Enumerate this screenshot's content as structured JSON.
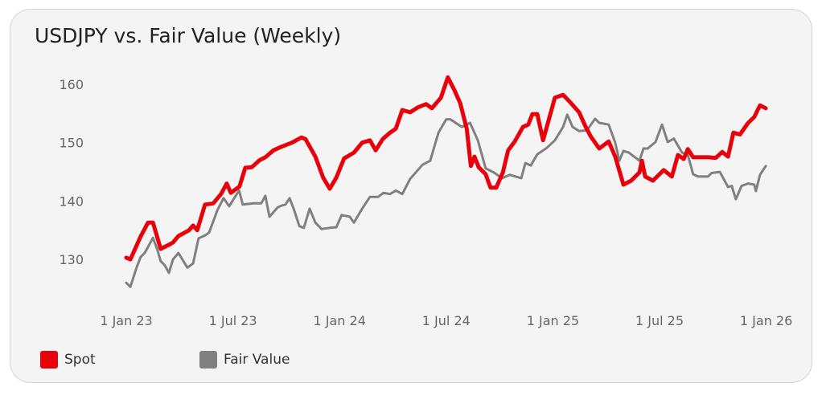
{
  "chart_data": {
    "type": "line",
    "title": "USDJPY vs. Fair Value (Weekly)",
    "xlabel": "",
    "ylabel": "",
    "x_unit": "weeks since 1 Jan 23",
    "x_ticks": [
      {
        "week": 0,
        "label": "1 Jan 23"
      },
      {
        "week": 26,
        "label": "1 Jul 23"
      },
      {
        "week": 52,
        "label": "1 Jan 24"
      },
      {
        "week": 78,
        "label": "1 Jul 24"
      },
      {
        "week": 104,
        "label": "1 Jan 25"
      },
      {
        "week": 130,
        "label": "1 Jul 25"
      },
      {
        "week": 156,
        "label": "1 Jan 26"
      }
    ],
    "y_ticks": [
      130,
      140,
      150,
      160
    ],
    "ylim": [
      120,
      162
    ],
    "grid": false,
    "legend_position": "bottom-left",
    "series": [
      {
        "name": "Spot",
        "color": "#e8000b",
        "points": [
          [
            0,
            130.3
          ],
          [
            1,
            130
          ],
          [
            3.5,
            133.9
          ],
          [
            5.3,
            136.3
          ],
          [
            6.5,
            136.3
          ],
          [
            8.4,
            131.8
          ],
          [
            10.4,
            132.5
          ],
          [
            11.4,
            132.9
          ],
          [
            12.7,
            134
          ],
          [
            15.3,
            135
          ],
          [
            16.3,
            135.8
          ],
          [
            17.3,
            135
          ],
          [
            19.2,
            139.4
          ],
          [
            21.2,
            139.6
          ],
          [
            23.1,
            141.2
          ],
          [
            24.5,
            143
          ],
          [
            25.5,
            141.4
          ],
          [
            27.6,
            142.5
          ],
          [
            29,
            145.7
          ],
          [
            30.6,
            145.8
          ],
          [
            32.5,
            147
          ],
          [
            33.9,
            147.5
          ],
          [
            35.9,
            148.7
          ],
          [
            37.8,
            149.3
          ],
          [
            40.4,
            150
          ],
          [
            42.7,
            150.9
          ],
          [
            43.7,
            150.6
          ],
          [
            46.1,
            147.6
          ],
          [
            48,
            144
          ],
          [
            49.6,
            142.1
          ],
          [
            51.2,
            144
          ],
          [
            53.1,
            147.3
          ],
          [
            55.5,
            148.3
          ],
          [
            57.5,
            150
          ],
          [
            59.4,
            150.4
          ],
          [
            60.8,
            148.7
          ],
          [
            62.5,
            150.6
          ],
          [
            64.3,
            151.7
          ],
          [
            65.7,
            152.4
          ],
          [
            67.3,
            155.6
          ],
          [
            69.2,
            155.2
          ],
          [
            71.2,
            156.1
          ],
          [
            73.1,
            156.6
          ],
          [
            74.5,
            155.9
          ],
          [
            76.7,
            157.7
          ],
          [
            78.4,
            161.2
          ],
          [
            80,
            159
          ],
          [
            81.4,
            156.8
          ],
          [
            83,
            152.4
          ],
          [
            84,
            146
          ],
          [
            84.9,
            147.6
          ],
          [
            85.9,
            145.8
          ],
          [
            87.6,
            144.6
          ],
          [
            88.8,
            142.3
          ],
          [
            90.2,
            142.3
          ],
          [
            91.8,
            144.9
          ],
          [
            93.1,
            148.7
          ],
          [
            94.7,
            150.2
          ],
          [
            96.7,
            152.7
          ],
          [
            98,
            153.1
          ],
          [
            99,
            154.9
          ],
          [
            100.2,
            154.9
          ],
          [
            101.6,
            150.4
          ],
          [
            104.5,
            157.7
          ],
          [
            106.5,
            158.2
          ],
          [
            108.4,
            156.8
          ],
          [
            110.4,
            155.2
          ],
          [
            112,
            152.7
          ],
          [
            113.3,
            151
          ],
          [
            115.3,
            149
          ],
          [
            117.6,
            150.2
          ],
          [
            119.2,
            147.6
          ],
          [
            121.2,
            142.8
          ],
          [
            123.1,
            143.5
          ],
          [
            125.1,
            144.9
          ],
          [
            125.7,
            146.9
          ],
          [
            126.5,
            144.2
          ],
          [
            128.4,
            143.5
          ],
          [
            131,
            145.3
          ],
          [
            133,
            144.2
          ],
          [
            134.5,
            147.9
          ],
          [
            135.9,
            147.2
          ],
          [
            136.9,
            148.9
          ],
          [
            138.2,
            147.5
          ],
          [
            141.8,
            147.5
          ],
          [
            143.7,
            147.4
          ],
          [
            145.3,
            148.4
          ],
          [
            146.7,
            147.6
          ],
          [
            148,
            151.7
          ],
          [
            149.6,
            151.4
          ],
          [
            151.6,
            153.4
          ],
          [
            153.1,
            154.4
          ],
          [
            154.5,
            156.4
          ],
          [
            155.9,
            155.9
          ]
        ]
      },
      {
        "name": "Fair Value",
        "color": "#808080",
        "points": [
          [
            0,
            126
          ],
          [
            1,
            125.3
          ],
          [
            2.5,
            128.6
          ],
          [
            3.5,
            130.4
          ],
          [
            4.5,
            131.1
          ],
          [
            6.5,
            133.7
          ],
          [
            7.5,
            131.8
          ],
          [
            8.4,
            129.7
          ],
          [
            9.4,
            129
          ],
          [
            10.4,
            127.7
          ],
          [
            11.4,
            130
          ],
          [
            12.7,
            131.1
          ],
          [
            14.9,
            128.6
          ],
          [
            16.3,
            129.3
          ],
          [
            17.6,
            133.6
          ],
          [
            19.2,
            134.1
          ],
          [
            20.2,
            134.6
          ],
          [
            22.2,
            138.4
          ],
          [
            23.7,
            140.5
          ],
          [
            25.1,
            139.1
          ],
          [
            26.5,
            140.7
          ],
          [
            27.5,
            141.8
          ],
          [
            28.4,
            139.4
          ],
          [
            31,
            139.6
          ],
          [
            32.9,
            139.6
          ],
          [
            33.9,
            140.9
          ],
          [
            34.9,
            137.3
          ],
          [
            36.9,
            138.9
          ],
          [
            37.8,
            139.2
          ],
          [
            38.8,
            139.4
          ],
          [
            39.8,
            140.5
          ],
          [
            40.8,
            138.7
          ],
          [
            42.2,
            135.7
          ],
          [
            43.3,
            135.4
          ],
          [
            44.7,
            138.7
          ],
          [
            46.1,
            136.3
          ],
          [
            47.6,
            135.2
          ],
          [
            49.6,
            135.4
          ],
          [
            51.2,
            135.5
          ],
          [
            52.5,
            137.6
          ],
          [
            54.5,
            137.3
          ],
          [
            55.5,
            136.3
          ],
          [
            57.5,
            138.7
          ],
          [
            59.4,
            140.7
          ],
          [
            61.4,
            140.7
          ],
          [
            62.7,
            141.4
          ],
          [
            64.3,
            141.2
          ],
          [
            65.7,
            141.8
          ],
          [
            67.3,
            141.2
          ],
          [
            69.2,
            143.8
          ],
          [
            72.2,
            146.2
          ],
          [
            74.1,
            146.9
          ],
          [
            76.1,
            151.7
          ],
          [
            78,
            154
          ],
          [
            79,
            154
          ],
          [
            81.8,
            152.7
          ],
          [
            83.8,
            153.4
          ],
          [
            85.7,
            150.4
          ],
          [
            87.6,
            145.6
          ],
          [
            89.6,
            144.9
          ],
          [
            91.6,
            143.9
          ],
          [
            93.5,
            144.5
          ],
          [
            96.3,
            143.9
          ],
          [
            97.3,
            146.5
          ],
          [
            98.6,
            146.1
          ],
          [
            100.2,
            148
          ],
          [
            102.5,
            149.1
          ],
          [
            104.5,
            150.4
          ],
          [
            106.5,
            152.7
          ],
          [
            107.5,
            154.8
          ],
          [
            108.8,
            152.7
          ],
          [
            110.4,
            152
          ],
          [
            112.3,
            152.1
          ],
          [
            114.3,
            154.1
          ],
          [
            115.3,
            153.4
          ],
          [
            117.6,
            153.1
          ],
          [
            119.2,
            150
          ],
          [
            120.2,
            146.9
          ],
          [
            121.2,
            148.6
          ],
          [
            122.5,
            148.3
          ],
          [
            125.1,
            146.9
          ],
          [
            126.1,
            149
          ],
          [
            127.1,
            149
          ],
          [
            129,
            150.1
          ],
          [
            130.6,
            153.1
          ],
          [
            132,
            150.1
          ],
          [
            133.5,
            150.7
          ],
          [
            135.5,
            148.3
          ],
          [
            136.9,
            147.9
          ],
          [
            138.2,
            144.6
          ],
          [
            139.4,
            144.2
          ],
          [
            141.8,
            144.2
          ],
          [
            142.7,
            144.8
          ],
          [
            144.7,
            145
          ],
          [
            146.7,
            142.4
          ],
          [
            147.6,
            142.6
          ],
          [
            148.6,
            140.3
          ],
          [
            150,
            142.6
          ],
          [
            151.6,
            143
          ],
          [
            153.1,
            142.8
          ],
          [
            153.5,
            141.7
          ],
          [
            154.5,
            144.5
          ],
          [
            155.9,
            146
          ]
        ]
      }
    ]
  }
}
